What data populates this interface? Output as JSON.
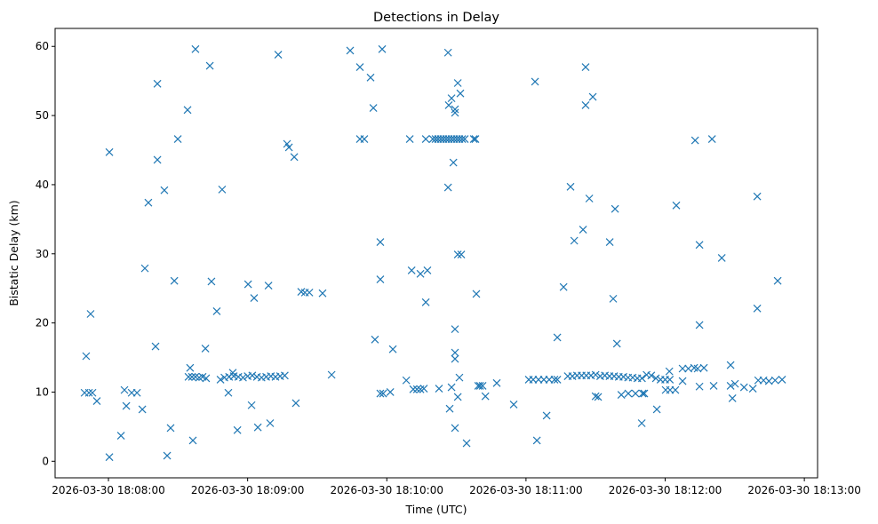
{
  "chart_data": {
    "type": "scatter",
    "title": "Detections in Delay",
    "xlabel": "Time (UTC)",
    "ylabel": "Bistatic Delay (km)",
    "x_reference_tick": "2026-03-30 18:08:00",
    "xlim_seconds": [
      -23,
      305.7
    ],
    "ylim": [
      -2.4,
      62.6
    ],
    "xticks": [
      {
        "value": 0,
        "label": "2026-03-30 18:08:00"
      },
      {
        "value": 60,
        "label": "2026-03-30 18:09:00"
      },
      {
        "value": 120,
        "label": "2026-03-30 18:10:00"
      },
      {
        "value": 180,
        "label": "2026-03-30 18:11:00"
      },
      {
        "value": 240,
        "label": "2026-03-30 18:12:00"
      },
      {
        "value": 300,
        "label": "2026-03-30 18:13:00"
      }
    ],
    "yticks": [
      {
        "value": 0,
        "label": "0"
      },
      {
        "value": 10,
        "label": "10"
      },
      {
        "value": 20,
        "label": "20"
      },
      {
        "value": 30,
        "label": "30"
      },
      {
        "value": 40,
        "label": "40"
      },
      {
        "value": 50,
        "label": "50"
      },
      {
        "value": 60,
        "label": "60"
      }
    ],
    "grid": false,
    "marker": "x",
    "color": "#1f77b4",
    "series": [
      {
        "name": "detections",
        "points": [
          [
            -10.3,
            9.9
          ],
          [
            -9.6,
            15.2
          ],
          [
            -8.4,
            9.9
          ],
          [
            -7.7,
            21.3
          ],
          [
            -6.9,
            9.9
          ],
          [
            -5.0,
            8.7
          ],
          [
            0.4,
            0.6
          ],
          [
            0.4,
            44.7
          ],
          [
            5.4,
            3.7
          ],
          [
            6.9,
            10.3
          ],
          [
            7.7,
            8.0
          ],
          [
            10.0,
            9.9
          ],
          [
            12.3,
            9.9
          ],
          [
            14.6,
            7.5
          ],
          [
            15.7,
            27.9
          ],
          [
            17.2,
            37.4
          ],
          [
            20.3,
            16.6
          ],
          [
            21.1,
            54.6
          ],
          [
            21.1,
            43.6
          ],
          [
            24.1,
            39.2
          ],
          [
            25.3,
            0.8
          ],
          [
            26.8,
            4.8
          ],
          [
            28.4,
            26.1
          ],
          [
            29.9,
            46.6
          ],
          [
            34.1,
            50.8
          ],
          [
            34.5,
            12.2
          ],
          [
            35.2,
            13.5
          ],
          [
            36.4,
            3.0
          ],
          [
            37.5,
            59.6
          ],
          [
            36.0,
            12.2
          ],
          [
            37.5,
            12.2
          ],
          [
            39.1,
            12.1
          ],
          [
            40.6,
            12.2
          ],
          [
            42.1,
            12.0
          ],
          [
            41.8,
            16.3
          ],
          [
            43.7,
            57.2
          ],
          [
            44.4,
            26.0
          ],
          [
            46.7,
            21.7
          ],
          [
            48.3,
            11.8
          ],
          [
            49.0,
            39.3
          ],
          [
            50,
            12.1
          ],
          [
            52,
            12.2
          ],
          [
            54,
            12.3
          ],
          [
            56,
            12.2
          ],
          [
            58,
            12.1
          ],
          [
            60,
            12.3
          ],
          [
            62,
            12.4
          ],
          [
            64,
            12.2
          ],
          [
            66,
            12.1
          ],
          [
            68,
            12.2
          ],
          [
            70,
            12.3
          ],
          [
            72,
            12.2
          ],
          [
            74,
            12.3
          ],
          [
            76,
            12.4
          ],
          [
            51.7,
            9.9
          ],
          [
            53.6,
            12.8
          ],
          [
            55.6,
            4.5
          ],
          [
            60.2,
            25.6
          ],
          [
            61.7,
            8.1
          ],
          [
            62.8,
            23.6
          ],
          [
            64.4,
            4.9
          ],
          [
            69.0,
            25.4
          ],
          [
            69.7,
            5.5
          ],
          [
            73.2,
            58.8
          ],
          [
            77.0,
            45.9
          ],
          [
            77.8,
            45.4
          ],
          [
            80.1,
            44.0
          ],
          [
            80.8,
            8.4
          ],
          [
            83.1,
            24.5
          ],
          [
            84.7,
            24.4
          ],
          [
            86.6,
            24.4
          ],
          [
            92.3,
            24.3
          ],
          [
            96.2,
            12.5
          ],
          [
            104.2,
            59.4
          ],
          [
            108.4,
            57.0
          ],
          [
            108.4,
            46.6
          ],
          [
            110.3,
            46.6
          ],
          [
            113.0,
            55.5
          ],
          [
            114.2,
            51.1
          ],
          [
            114.9,
            17.6
          ],
          [
            117.2,
            31.7
          ],
          [
            117.2,
            26.3
          ],
          [
            117.2,
            9.8
          ],
          [
            118.4,
            9.8
          ],
          [
            118.0,
            59.6
          ],
          [
            121.5,
            10.0
          ],
          [
            122.6,
            16.2
          ],
          [
            128.4,
            11.7
          ],
          [
            129.9,
            46.6
          ],
          [
            130.7,
            27.6
          ],
          [
            131.4,
            10.4
          ],
          [
            133.0,
            10.4
          ],
          [
            134.5,
            10.4
          ],
          [
            136.0,
            10.5
          ],
          [
            134.5,
            27.1
          ],
          [
            136.8,
            23.0
          ],
          [
            136.8,
            46.6
          ],
          [
            137.5,
            27.6
          ],
          [
            139.8,
            46.6
          ],
          [
            141.0,
            46.6
          ],
          [
            142.1,
            46.6
          ],
          [
            143.3,
            46.6
          ],
          [
            144.4,
            46.6
          ],
          [
            145.6,
            46.6
          ],
          [
            146.7,
            46.6
          ],
          [
            147.9,
            46.6
          ],
          [
            149.0,
            46.6
          ],
          [
            150.2,
            46.6
          ],
          [
            151.3,
            46.6
          ],
          [
            152.5,
            46.6
          ],
          [
            153.6,
            46.6
          ],
          [
            142.5,
            10.5
          ],
          [
            146.4,
            59.1
          ],
          [
            146.4,
            39.6
          ],
          [
            146.7,
            51.5
          ],
          [
            147.1,
            7.6
          ],
          [
            147.9,
            52.5
          ],
          [
            147.9,
            10.7
          ],
          [
            148.7,
            43.2
          ],
          [
            149.4,
            50.9
          ],
          [
            149.4,
            50.4
          ],
          [
            149.4,
            19.1
          ],
          [
            149.4,
            15.7
          ],
          [
            149.4,
            14.8
          ],
          [
            149.4,
            4.8
          ],
          [
            150.6,
            54.7
          ],
          [
            150.6,
            29.9
          ],
          [
            152.1,
            29.9
          ],
          [
            150.6,
            9.3
          ],
          [
            151.3,
            12.1
          ],
          [
            151.7,
            53.2
          ],
          [
            154.4,
            2.6
          ],
          [
            157.5,
            46.6
          ],
          [
            158.2,
            46.6
          ],
          [
            158.6,
            24.2
          ],
          [
            159.4,
            10.9
          ],
          [
            160.2,
            10.9
          ],
          [
            161.3,
            10.9
          ],
          [
            162.5,
            9.4
          ],
          [
            167.4,
            11.3
          ],
          [
            174.7,
            8.2
          ],
          [
            181.2,
            11.8
          ],
          [
            183.1,
            11.8
          ],
          [
            185.4,
            11.8
          ],
          [
            187.7,
            11.8
          ],
          [
            190.0,
            11.8
          ],
          [
            192.3,
            11.8
          ],
          [
            193.5,
            11.8
          ],
          [
            183.9,
            54.9
          ],
          [
            184.7,
            3.0
          ],
          [
            188.9,
            6.6
          ],
          [
            193.5,
            17.9
          ],
          [
            196.2,
            25.2
          ],
          [
            199.2,
            39.7
          ],
          [
            200.8,
            31.9
          ],
          [
            204.6,
            33.5
          ],
          [
            205.7,
            57.0
          ],
          [
            205.7,
            51.5
          ],
          [
            207.3,
            38.0
          ],
          [
            208.8,
            52.7
          ],
          [
            216.1,
            31.7
          ],
          [
            217.6,
            23.5
          ],
          [
            218.4,
            36.5
          ],
          [
            219.2,
            17.0
          ],
          [
            210.0,
            9.4
          ],
          [
            211.1,
            9.3
          ],
          [
            221.1,
            9.6
          ],
          [
            224.1,
            9.8
          ],
          [
            227.2,
            9.8
          ],
          [
            230.3,
            9.8
          ],
          [
            231.0,
            9.8
          ],
          [
            198,
            12.3
          ],
          [
            200,
            12.3
          ],
          [
            202,
            12.4
          ],
          [
            204,
            12.4
          ],
          [
            206,
            12.4
          ],
          [
            208,
            12.4
          ],
          [
            210,
            12.5
          ],
          [
            212,
            12.3
          ],
          [
            214,
            12.4
          ],
          [
            216,
            12.3
          ],
          [
            218,
            12.3
          ],
          [
            220,
            12.2
          ],
          [
            222,
            12.2
          ],
          [
            224,
            12.1
          ],
          [
            226,
            12.1
          ],
          [
            228,
            12.0
          ],
          [
            230,
            12.0
          ],
          [
            232,
            12.5
          ],
          [
            234,
            12.4
          ],
          [
            236,
            12.0
          ],
          [
            238,
            11.8
          ],
          [
            240,
            11.8
          ],
          [
            242,
            11.8
          ],
          [
            229.9,
            5.5
          ],
          [
            236.4,
            7.5
          ],
          [
            240.2,
            10.3
          ],
          [
            242.1,
            10.3
          ],
          [
            244.4,
            10.3
          ],
          [
            241.8,
            13.0
          ],
          [
            244.8,
            37.0
          ],
          [
            247.5,
            11.6
          ],
          [
            247.5,
            13.4
          ],
          [
            250.0,
            13.4
          ],
          [
            252.5,
            13.5
          ],
          [
            254.0,
            13.4
          ],
          [
            256.7,
            13.5
          ],
          [
            252.9,
            46.4
          ],
          [
            254.8,
            31.3
          ],
          [
            254.8,
            19.7
          ],
          [
            254.8,
            10.8
          ],
          [
            260.2,
            46.6
          ],
          [
            260.9,
            10.9
          ],
          [
            264.4,
            29.4
          ],
          [
            268.2,
            13.9
          ],
          [
            268.2,
            10.9
          ],
          [
            270.1,
            11.2
          ],
          [
            269.0,
            9.1
          ],
          [
            274.0,
            10.7
          ],
          [
            277.8,
            10.5
          ],
          [
            279.7,
            38.3
          ],
          [
            279.7,
            22.1
          ],
          [
            280.1,
            11.7
          ],
          [
            282.4,
            11.7
          ],
          [
            284.7,
            11.6
          ],
          [
            287.4,
            11.7
          ],
          [
            290.4,
            11.8
          ],
          [
            288.5,
            26.1
          ]
        ]
      }
    ]
  }
}
